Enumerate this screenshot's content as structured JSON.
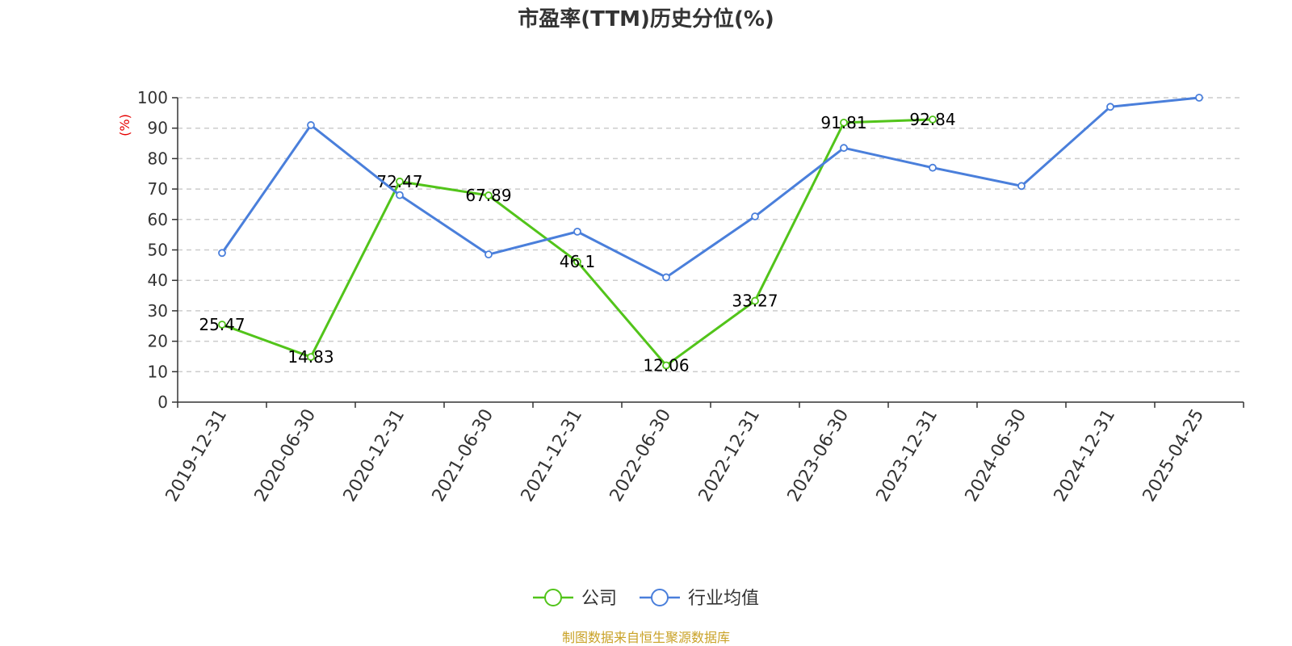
{
  "chart_data": {
    "type": "line",
    "title": "市盈率(TTM)历史分位(%)",
    "ylabel": "(%)",
    "xlabel": "",
    "categories": [
      "2019-12-31",
      "2020-06-30",
      "2020-12-31",
      "2021-06-30",
      "2021-12-31",
      "2022-06-30",
      "2022-12-31",
      "2023-06-30",
      "2023-12-31",
      "2024-06-30",
      "2024-12-31",
      "2025-04-25"
    ],
    "ylim": [
      0,
      100
    ],
    "yticks": [
      0,
      10,
      20,
      30,
      40,
      50,
      60,
      70,
      80,
      90,
      100
    ],
    "grid": true,
    "legend_position": "bottom",
    "series": [
      {
        "name": "公司",
        "color": "#52c41a",
        "values": [
          25.47,
          14.83,
          72.47,
          67.89,
          46.1,
          12.06,
          33.27,
          91.81,
          92.84,
          null,
          null,
          null
        ],
        "labels": [
          "25.47",
          "14.83",
          "72.47",
          "67.89",
          "46.1",
          "12.06",
          "33.27",
          "91.81",
          "92.84",
          "",
          "",
          ""
        ]
      },
      {
        "name": "行业均值",
        "color": "#4a7fdb",
        "values": [
          49,
          91,
          68,
          48.5,
          56,
          41,
          61,
          83.5,
          77,
          71,
          97,
          100
        ]
      }
    ]
  },
  "footer": {
    "source": "制图数据来自恒生聚源数据库",
    "color": "#c9a227"
  },
  "ylabel_color": "#e60000"
}
